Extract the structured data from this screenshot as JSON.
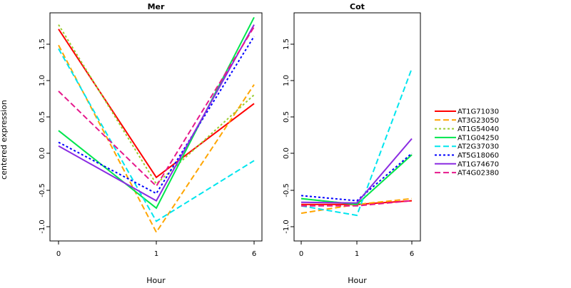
{
  "figure": {
    "ylabel": "centered expression",
    "xlabel": "Hour"
  },
  "chart_data": [
    {
      "type": "line",
      "title": "Mer",
      "x": [
        "0",
        "1",
        "6"
      ],
      "xlabel": "Hour",
      "ylabel": "centered expression",
      "yticks": [
        "-1.0",
        "-0.5",
        "0.0",
        "0.5",
        "1.0",
        "1.5"
      ],
      "ylim": [
        -1.2,
        1.9
      ],
      "series": [
        {
          "name": "AT1G71030",
          "values": [
            1.7,
            -0.33,
            0.68
          ],
          "color": "#ff0000",
          "dash": "solid"
        },
        {
          "name": "AT3G23050",
          "values": [
            1.48,
            -1.08,
            0.94
          ],
          "color": "#ffa500",
          "dash": "dashed"
        },
        {
          "name": "AT1G54040",
          "values": [
            1.76,
            -0.42,
            0.8
          ],
          "color": "#9acd32",
          "dash": "dotted"
        },
        {
          "name": "AT1G04250",
          "values": [
            0.31,
            -0.75,
            1.86
          ],
          "color": "#00e64d",
          "dash": "solid"
        },
        {
          "name": "AT2G37030",
          "values": [
            1.43,
            -0.93,
            -0.1
          ],
          "color": "#00e5ee",
          "dash": "dashed"
        },
        {
          "name": "AT5G18060",
          "values": [
            0.15,
            -0.55,
            1.6
          ],
          "color": "#0000ff",
          "dash": "dotted"
        },
        {
          "name": "AT1G74670",
          "values": [
            0.1,
            -0.65,
            1.76
          ],
          "color": "#8a2be2",
          "dash": "solid"
        },
        {
          "name": "AT4G02380",
          "values": [
            0.85,
            -0.45,
            1.73
          ],
          "color": "#e6198c",
          "dash": "dashed"
        }
      ]
    },
    {
      "type": "line",
      "title": "Cot",
      "x": [
        "0",
        "1",
        "6"
      ],
      "xlabel": "Hour",
      "yticks": [
        "-1.0",
        "-0.5",
        "0.0",
        "0.5",
        "1.0",
        "1.5"
      ],
      "ylim": [
        -1.2,
        1.9
      ],
      "series": [
        {
          "name": "AT1G71030",
          "values": [
            -0.7,
            -0.7,
            -0.65
          ],
          "color": "#ff0000",
          "dash": "solid"
        },
        {
          "name": "AT3G23050",
          "values": [
            -0.82,
            -0.7,
            -0.62
          ],
          "color": "#ffa500",
          "dash": "dashed"
        },
        {
          "name": "AT1G54040",
          "values": [
            -0.62,
            -0.7,
            -0.02
          ],
          "color": "#9acd32",
          "dash": "dotted"
        },
        {
          "name": "AT1G04250",
          "values": [
            -0.62,
            -0.7,
            -0.02
          ],
          "color": "#00e64d",
          "dash": "solid"
        },
        {
          "name": "AT2G37030",
          "values": [
            -0.72,
            -0.85,
            1.16
          ],
          "color": "#00e5ee",
          "dash": "dashed"
        },
        {
          "name": "AT5G18060",
          "values": [
            -0.58,
            -0.65,
            0.0
          ],
          "color": "#0000ff",
          "dash": "dotted"
        },
        {
          "name": "AT1G74670",
          "values": [
            -0.67,
            -0.68,
            0.2
          ],
          "color": "#8a2be2",
          "dash": "solid"
        },
        {
          "name": "AT4G02380",
          "values": [
            -0.72,
            -0.72,
            -0.65
          ],
          "color": "#e6198c",
          "dash": "dashed"
        }
      ]
    }
  ],
  "legend": {
    "placement": "right",
    "entries": [
      {
        "name": "AT1G71030",
        "color": "#ff0000",
        "dash": "solid"
      },
      {
        "name": "AT3G23050",
        "color": "#ffa500",
        "dash": "dashed"
      },
      {
        "name": "AT1G54040",
        "color": "#9acd32",
        "dash": "dotted"
      },
      {
        "name": "AT1G04250",
        "color": "#00e64d",
        "dash": "solid"
      },
      {
        "name": "AT2G37030",
        "color": "#00e5ee",
        "dash": "dashed"
      },
      {
        "name": "AT5G18060",
        "color": "#0000ff",
        "dash": "dotted"
      },
      {
        "name": "AT1G74670",
        "color": "#8a2be2",
        "dash": "solid"
      },
      {
        "name": "AT4G02380",
        "color": "#e6198c",
        "dash": "dashed"
      }
    ]
  }
}
